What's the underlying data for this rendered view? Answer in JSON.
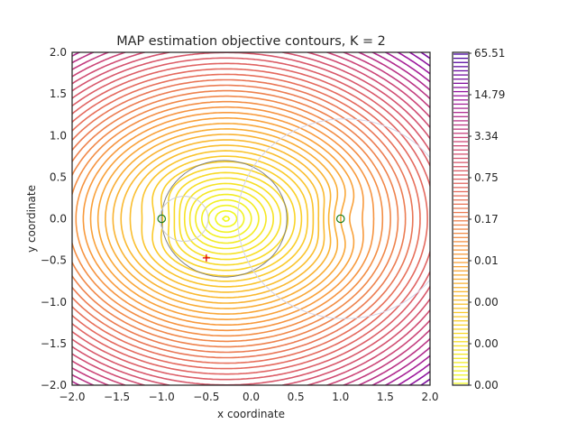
{
  "chart_data": {
    "type": "contour",
    "title": "MAP estimation objective contours, K = 2",
    "xlabel": "x coordinate",
    "ylabel": "y coordinate",
    "xlim": [
      -2.0,
      2.0
    ],
    "ylim": [
      -2.0,
      2.0
    ],
    "x_ticks": [
      "−2.0",
      "−1.5",
      "−1.0",
      "−0.5",
      "0.0",
      "0.5",
      "1.0",
      "1.5",
      "2.0"
    ],
    "y_ticks": [
      "−2.0",
      "−1.5",
      "−1.0",
      "−0.5",
      "0.0",
      "0.5",
      "1.0",
      "1.5",
      "2.0"
    ],
    "colormap": "plasma_r",
    "colorbar_ticks": [
      "0.00",
      "0.00",
      "0.00",
      "0.01",
      "0.17",
      "0.75",
      "3.34",
      "14.79",
      "65.51"
    ],
    "grid": false,
    "objective_minimum": {
      "x": -0.28,
      "y": 0.0
    },
    "data_points": [
      {
        "x": -1.0,
        "y": 0.0
      },
      {
        "x": 1.0,
        "y": 0.0
      }
    ],
    "estimate_marker": {
      "x": -0.5,
      "y": -0.47
    },
    "reference_circles": [
      {
        "cx": -0.3,
        "cy": 0.0,
        "r": 0.7,
        "color": "#808080"
      },
      {
        "cx": -0.75,
        "cy": 0.0,
        "r": 0.27,
        "color": "#d0d0d0"
      },
      {
        "cx": 1.05,
        "cy": 0.0,
        "r": 1.2,
        "color": "#d4d4e8"
      }
    ],
    "colors": {
      "point_edge": "#1a7f1a",
      "estimate": "#e00000",
      "axes_edge": "#262626"
    }
  }
}
